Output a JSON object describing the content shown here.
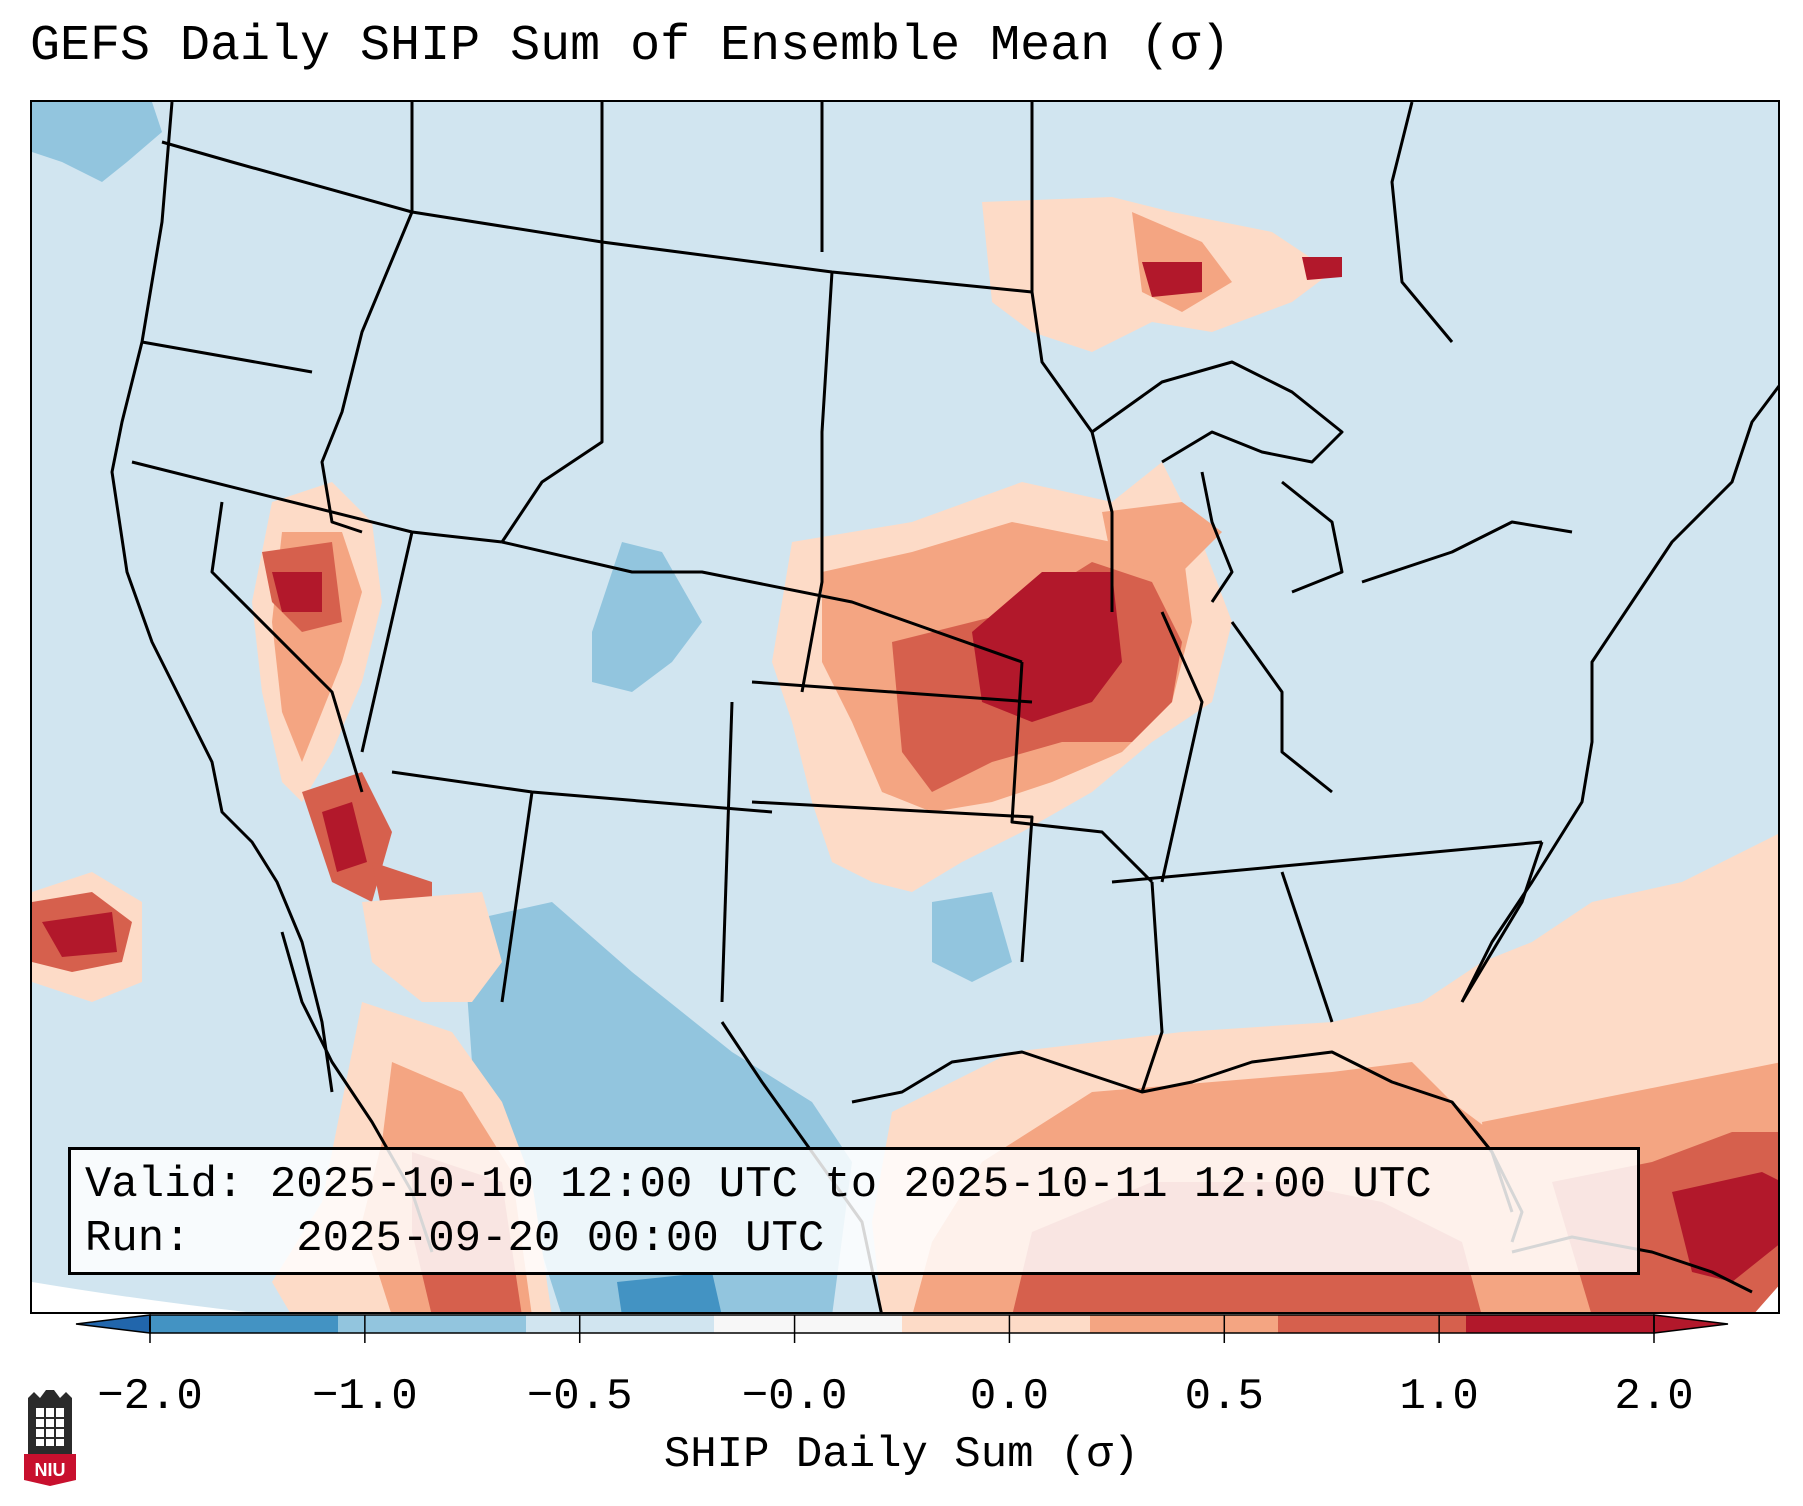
{
  "title": "GEFS Daily SHIP Sum of Ensemble Mean (σ)",
  "info": {
    "valid_label": "Valid:",
    "valid_value": "2025-10-10 12:00 UTC to 2025-10-11 12:00 UTC",
    "run_label": "Run:",
    "run_value": "2025-09-20 00:00 UTC"
  },
  "colorbar": {
    "label": "SHIP Daily Sum (σ)",
    "ticks": [
      "−2.0",
      "−1.0",
      "−0.5",
      "−0.0",
      "0.0",
      "0.5",
      "1.0",
      "2.0"
    ],
    "colors": [
      "#4393c3",
      "#92c5de",
      "#d1e5f0",
      "#f7f7f7",
      "#fddbc7",
      "#f4a582",
      "#d6604d",
      "#b2182b"
    ],
    "under_color": "#2166ac",
    "over_color": "#b2182b"
  },
  "palette": {
    "neg2": "#4393c3",
    "neg1": "#92c5de",
    "neutral_neg": "#d1e5f0",
    "pos0": "#fddbc7",
    "pos05": "#f4a582",
    "pos1": "#d6604d",
    "pos2": "#b2182b"
  },
  "logo": {
    "text": "NIU"
  }
}
